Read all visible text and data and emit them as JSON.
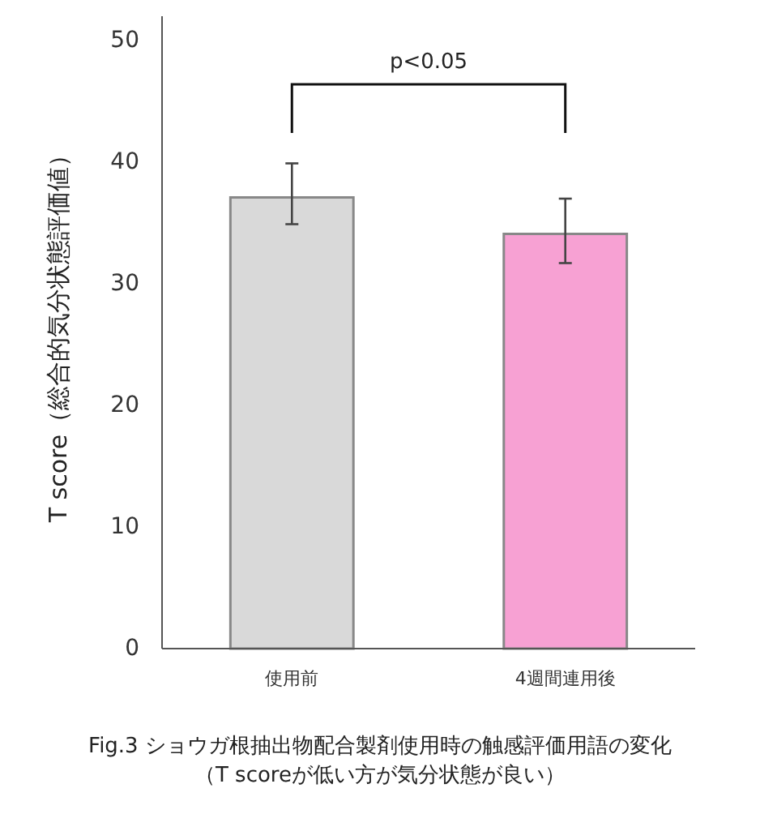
{
  "chart_data": {
    "type": "bar",
    "categories": [
      "使用前",
      "4週間連用後"
    ],
    "values": [
      37.1,
      34.1
    ],
    "colors": [
      "#d9d9d9",
      "#f7a1d3"
    ],
    "errors": [
      [
        34.9,
        39.9
      ],
      [
        31.7,
        37.0
      ]
    ],
    "ylabel": "T score（総合的気分状態評価値）",
    "ylim": [
      0,
      52
    ],
    "yticks": [
      0,
      10,
      20,
      30,
      40,
      50
    ],
    "annotations": [
      "p<0.05",
      "Fig.3 ショウガ根抽出物配合製剤使用時の触感評価用語の変化",
      "（T scoreが低い方が気分状態が良い）"
    ]
  }
}
